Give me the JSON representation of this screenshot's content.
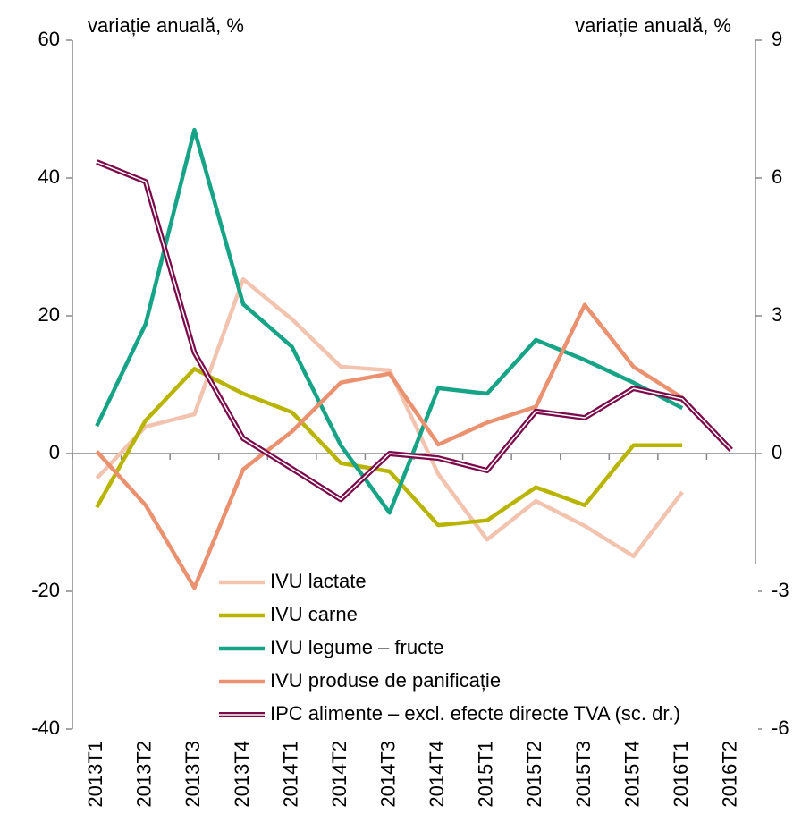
{
  "chart_data": {
    "type": "line",
    "y_label": "variație anuală, %",
    "y2_label": "variație anuală, %",
    "categories": [
      "2013T1",
      "2013T2",
      "2013T3",
      "2013T4",
      "2014T1",
      "2014T2",
      "2014T3",
      "2014T4",
      "2015T1",
      "2015T2",
      "2015T3",
      "2015T4",
      "2016T1",
      "2016T2"
    ],
    "series": [
      {
        "name": "IVU lactate",
        "color": "#f2c4b0",
        "values": [
          -3.6,
          3.9,
          5.7,
          25.3,
          19.5,
          12.6,
          12.1,
          -3.0,
          -12.5,
          -6.9,
          -10.5,
          -14.9,
          -5.6,
          null
        ]
      },
      {
        "name": "IVU carne",
        "color": "#b8b400",
        "values": [
          -7.8,
          4.8,
          12.3,
          8.7,
          6.0,
          -1.4,
          -2.6,
          -10.4,
          -9.7,
          -4.9,
          -7.5,
          1.2,
          1.2,
          null
        ]
      },
      {
        "name": "IVU legume – fructe",
        "color": "#17a386",
        "values": [
          4.0,
          18.8,
          47.0,
          21.7,
          15.5,
          1.2,
          -8.6,
          9.5,
          8.7,
          16.5,
          13.6,
          10.3,
          6.6,
          null
        ]
      },
      {
        "name": "IVU produse de panificație",
        "color": "#ea9170",
        "values": [
          0.3,
          -7.5,
          -19.5,
          -2.3,
          3.2,
          10.3,
          11.6,
          1.3,
          4.5,
          6.8,
          21.6,
          12.6,
          8.1,
          null
        ]
      },
      {
        "name": "IPC alimente – excl. efecte directe TVA (sc. dr.)",
        "color": "#7b0a4a",
        "axis": "y2",
        "values": [
          6.35,
          5.92,
          2.2,
          0.33,
          -0.33,
          -1.0,
          0.0,
          -0.1,
          -0.37,
          0.92,
          0.78,
          1.42,
          1.19,
          0.08
        ]
      }
    ],
    "ylim": [
      -40,
      60
    ],
    "yticks": [
      -40,
      -20,
      0,
      20,
      40,
      60
    ],
    "y2lim": [
      -6,
      9
    ],
    "y2ticks": [
      -6,
      -3,
      0,
      3,
      6,
      9
    ]
  }
}
